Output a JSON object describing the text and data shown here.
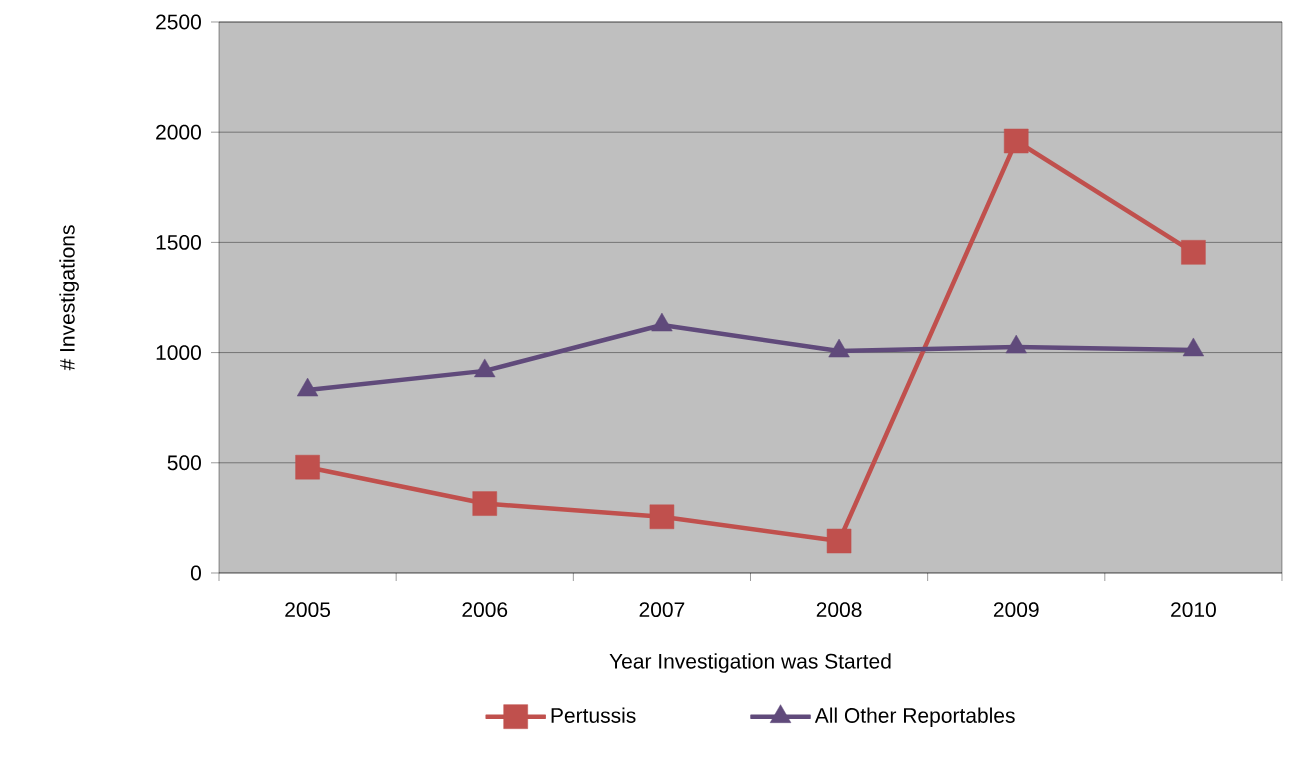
{
  "chart_data": {
    "type": "line",
    "xlabel": "Year Investigation was Started",
    "ylabel": "# Investigations",
    "categories": [
      "2005",
      "2006",
      "2007",
      "2008",
      "2009",
      "2010"
    ],
    "series": [
      {
        "name": "Pertussis",
        "color": "#c0504d",
        "marker": "square",
        "values": [
          480,
          315,
          255,
          145,
          1960,
          1455
        ]
      },
      {
        "name": "All Other Reportables",
        "color": "#604a7b",
        "marker": "triangle",
        "values": [
          830,
          917,
          1125,
          1007,
          1025,
          1012
        ]
      }
    ],
    "ylim": [
      0,
      2500
    ],
    "yticks": [
      0,
      500,
      1000,
      1500,
      2000,
      2500
    ],
    "grid": "y",
    "legend": "bottom",
    "line_style": "solid"
  }
}
